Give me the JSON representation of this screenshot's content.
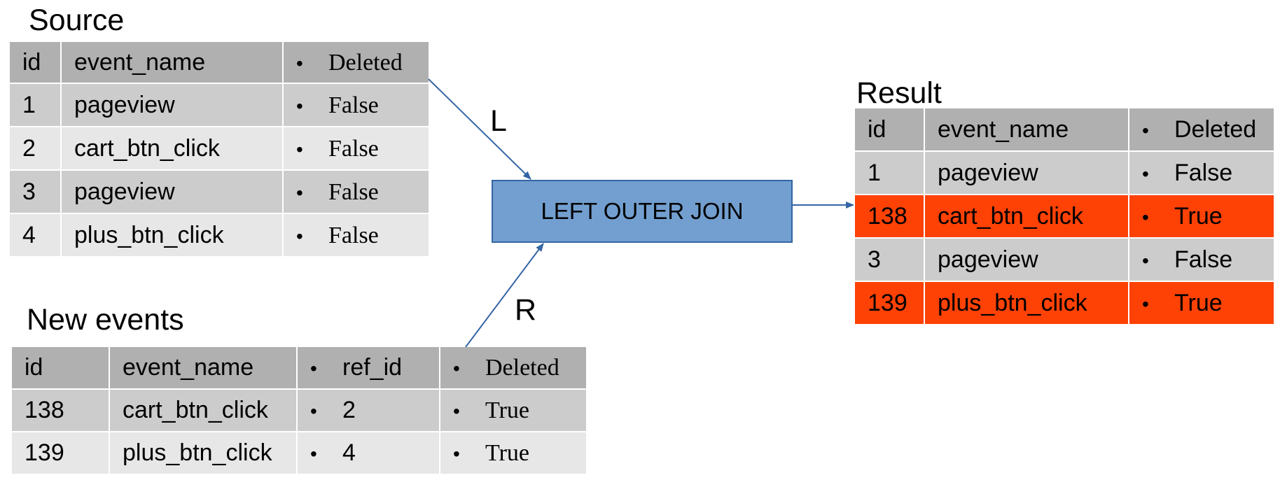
{
  "source": {
    "title": "Source",
    "headers": [
      "id",
      "event_name",
      "Deleted"
    ],
    "rows": [
      [
        "1",
        "pageview",
        "False"
      ],
      [
        "2",
        "cart_btn_click",
        "False"
      ],
      [
        "3",
        "pageview",
        "False"
      ],
      [
        "4",
        "plus_btn_click",
        "False"
      ]
    ]
  },
  "new_events": {
    "title": "New events",
    "headers": [
      "id",
      "event_name",
      "ref_id",
      "Deleted"
    ],
    "rows": [
      [
        "138",
        "cart_btn_click",
        "2",
        "True"
      ],
      [
        "139",
        "plus_btn_click",
        "4",
        "True"
      ]
    ]
  },
  "result": {
    "title": "Result",
    "headers": [
      "id",
      "event_name",
      "Deleted"
    ],
    "rows": [
      [
        "1",
        "pageview",
        "False"
      ],
      [
        "138",
        "cart_btn_click",
        "True"
      ],
      [
        "3",
        "pageview",
        "False"
      ],
      [
        "139",
        "plus_btn_click",
        "True"
      ]
    ],
    "highlight_color": "#fe4105"
  },
  "join": {
    "label": "LEFT OUTER JOIN",
    "left_label": "L",
    "right_label": "R",
    "box_color": "#729fcf",
    "arrow_color": "#3465a4"
  }
}
